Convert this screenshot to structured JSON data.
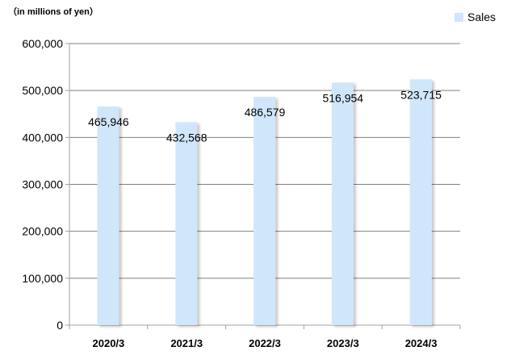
{
  "unit_label": "（in millions of yen）",
  "chart_data": {
    "type": "bar",
    "categories": [
      "2020/3",
      "2021/3",
      "2022/3",
      "2023/3",
      "2024/3"
    ],
    "series": [
      {
        "name": "Sales",
        "values": [
          465946,
          432568,
          486579,
          516954,
          523715
        ],
        "labels": [
          "465,946",
          "432,568",
          "486,579",
          "516,954",
          "523,715"
        ]
      }
    ],
    "ylim": [
      0,
      600000
    ],
    "yticks": [
      0,
      100000,
      200000,
      300000,
      400000,
      500000,
      600000
    ],
    "ytick_labels": [
      "0",
      "100,000",
      "200,000",
      "300,000",
      "400,000",
      "500,000",
      "600,000"
    ],
    "grid": true,
    "legend_position": "top-right",
    "bar_color": "#cfe6fb",
    "grid_color": "#808080",
    "axis_color": "#a0a0a0"
  }
}
